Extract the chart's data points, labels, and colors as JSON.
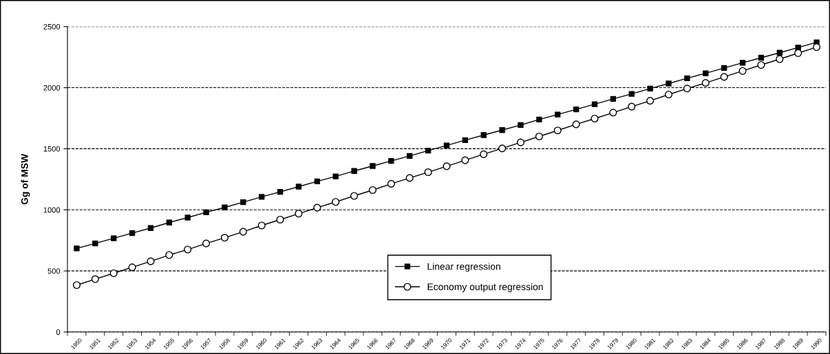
{
  "chart_data": {
    "type": "line",
    "ylabel": "Gg of MSW",
    "categories": [
      "1950",
      "1951",
      "1952",
      "1953",
      "1954",
      "1955",
      "1956",
      "1957",
      "1958",
      "1959",
      "1960",
      "1961",
      "1962",
      "1963",
      "1964",
      "1965",
      "1966",
      "1967",
      "1968",
      "1969",
      "1970",
      "1971",
      "1972",
      "1973",
      "1974",
      "1975",
      "1976",
      "1977",
      "1978",
      "1979",
      "1980",
      "1981",
      "1982",
      "1983",
      "1984",
      "1985",
      "1986",
      "1987",
      "1988",
      "1989",
      "1990"
    ],
    "series": [
      {
        "name": "Linear regression",
        "color": "#000000",
        "marker": "square",
        "values": [
          684,
          725,
          767,
          810,
          851,
          896,
          937,
          980,
          1020,
          1063,
          1106,
          1147,
          1190,
          1233,
          1274,
          1318,
          1359,
          1400,
          1441,
          1485,
          1527,
          1571,
          1612,
          1653,
          1694,
          1739,
          1780,
          1822,
          1865,
          1908,
          1949,
          1993,
          2034,
          2077,
          2118,
          2161,
          2204,
          2245,
          2286,
          2329,
          2371
        ]
      },
      {
        "name": "Economy output regression",
        "color": "#000000",
        "marker": "circle",
        "values": [
          384,
          433,
          481,
          530,
          579,
          630,
          675,
          725,
          772,
          821,
          872,
          920,
          969,
          1018,
          1065,
          1114,
          1162,
          1213,
          1261,
          1308,
          1357,
          1406,
          1455,
          1503,
          1552,
          1601,
          1650,
          1700,
          1747,
          1796,
          1845,
          1893,
          1944,
          1993,
          2039,
          2088,
          2137,
          2186,
          2234,
          2283,
          2332
        ]
      }
    ],
    "ylim": [
      0,
      2500
    ],
    "yticks": [
      0,
      500,
      1000,
      1500,
      2000,
      2500
    ],
    "grid": "y",
    "legend": "bottom",
    "line_style": "solid"
  }
}
